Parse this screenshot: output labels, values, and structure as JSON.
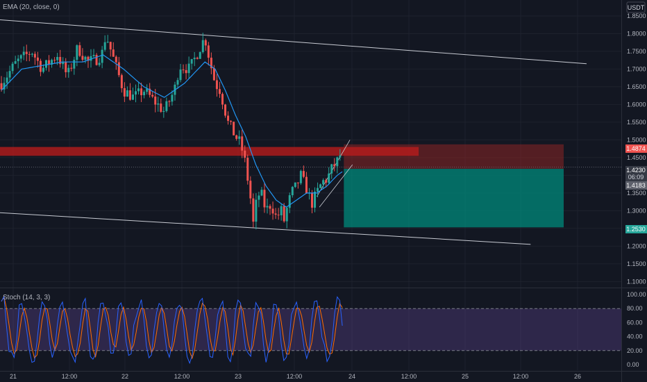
{
  "toolbar": {
    "currency": "USDT"
  },
  "legend": {
    "main_indicator": "EMA (20, close, 0)",
    "sub_indicator": "Stoch (14, 3, 3)"
  },
  "price_badges": {
    "stop": "1.4874",
    "last": "1.4230",
    "countdown": "06:09",
    "entry": "1.4183",
    "target": "1.2530"
  },
  "colors": {
    "background": "#131722",
    "up": "#26a69a",
    "down": "#ef5350",
    "ema": "#2196f3",
    "stoch_k": "#2962ff",
    "stoch_d": "#ff6d00",
    "stoch_band": "#7e57c2",
    "stop_zone": "#b71c1c",
    "target_zone": "#00897b"
  },
  "chart_data": {
    "type": "candlestick",
    "price_axis": {
      "ticks": [
        "1.8500",
        "1.8000",
        "1.7500",
        "1.7000",
        "1.6500",
        "1.6000",
        "1.5500",
        "1.5000",
        "1.4500",
        "1.4000",
        "1.3500",
        "1.3000",
        "1.2500",
        "1.2000",
        "1.1500",
        "1.1000"
      ],
      "range": [
        1.085,
        1.895
      ]
    },
    "time_axis": {
      "ticks": [
        "21",
        "12:00",
        "22",
        "12:00",
        "23",
        "12:00",
        "24",
        "12:00",
        "25",
        "12:00",
        "26"
      ]
    },
    "price_path": [
      [
        0,
        1.66
      ],
      [
        3,
        1.72
      ],
      [
        6,
        1.75
      ],
      [
        8,
        1.7
      ],
      [
        11,
        1.74
      ],
      [
        13,
        1.68
      ],
      [
        15,
        1.76
      ],
      [
        17,
        1.72
      ],
      [
        19,
        1.73
      ],
      [
        20,
        1.75
      ],
      [
        20.5,
        1.8
      ],
      [
        22,
        1.73
      ],
      [
        24,
        1.64
      ],
      [
        26,
        1.62
      ],
      [
        28,
        1.64
      ],
      [
        30,
        1.61
      ],
      [
        32,
        1.58
      ],
      [
        34,
        1.64
      ],
      [
        35,
        1.71
      ],
      [
        37,
        1.7
      ],
      [
        39,
        1.76
      ],
      [
        40,
        1.79
      ],
      [
        41,
        1.72
      ],
      [
        42,
        1.66
      ],
      [
        43,
        1.64
      ],
      [
        44.5,
        1.55
      ],
      [
        46,
        1.51
      ],
      [
        47,
        1.49
      ],
      [
        48,
        1.43
      ],
      [
        49,
        1.33
      ],
      [
        49.6,
        1.25
      ],
      [
        50.2,
        1.34
      ],
      [
        51,
        1.35
      ],
      [
        52,
        1.3
      ],
      [
        53,
        1.32
      ],
      [
        54,
        1.28
      ],
      [
        55,
        1.3
      ],
      [
        55.6,
        1.27
      ],
      [
        56,
        1.3
      ],
      [
        57,
        1.35
      ],
      [
        58,
        1.37
      ],
      [
        58.8,
        1.4
      ],
      [
        60,
        1.36
      ],
      [
        61,
        1.32
      ],
      [
        62,
        1.35
      ],
      [
        63,
        1.38
      ],
      [
        64,
        1.39
      ],
      [
        65,
        1.42
      ],
      [
        66,
        1.44
      ],
      [
        66.7,
        1.46
      ],
      [
        67,
        1.423
      ]
    ],
    "ema_20_path": [
      [
        0,
        1.64
      ],
      [
        4,
        1.7
      ],
      [
        8,
        1.71
      ],
      [
        12,
        1.72
      ],
      [
        16,
        1.72
      ],
      [
        20,
        1.74
      ],
      [
        24,
        1.7
      ],
      [
        28,
        1.65
      ],
      [
        32,
        1.62
      ],
      [
        36,
        1.66
      ],
      [
        40,
        1.72
      ],
      [
        42,
        1.7
      ],
      [
        44,
        1.64
      ],
      [
        46,
        1.57
      ],
      [
        48,
        1.51
      ],
      [
        50,
        1.43
      ],
      [
        52,
        1.37
      ],
      [
        54,
        1.33
      ],
      [
        56,
        1.31
      ],
      [
        58,
        1.33
      ],
      [
        60,
        1.35
      ],
      [
        62,
        1.35
      ],
      [
        64,
        1.37
      ],
      [
        66,
        1.4
      ],
      [
        67,
        1.41
      ]
    ],
    "channel": {
      "upper": [
        [
          -1,
          1.84
        ],
        [
          115,
          1.715
        ]
      ],
      "lower": [
        [
          -1,
          1.295
        ],
        [
          104,
          1.205
        ]
      ]
    },
    "position": {
      "entry": 1.4183,
      "stop": 1.4874,
      "target": 1.253,
      "start_day": 67.3,
      "end_day": 110.5
    },
    "resistance_zone": {
      "from": 1.455,
      "to": 1.48,
      "end_day": 82
    },
    "stochastic": {
      "axis_ticks": [
        "100.00",
        "80.00",
        "60.00",
        "40.00",
        "20.00",
        "0.00"
      ],
      "range": [
        -8,
        108
      ],
      "upper_band": 80,
      "lower_band": 20
    }
  }
}
